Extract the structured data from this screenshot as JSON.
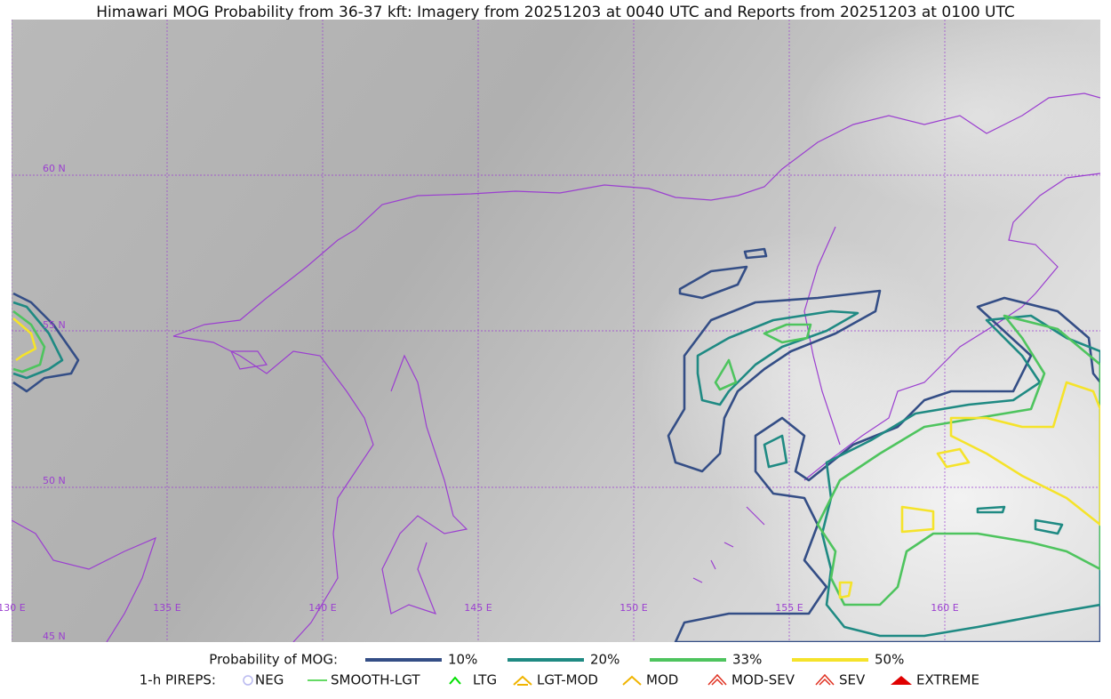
{
  "title": "Himawari MOG Probability from 36-37 kft: Imagery from 20251203 at 0040 UTC and Reports from 20251203 at 0100 UTC",
  "map": {
    "lat_labels": [
      "60 N",
      "55 N",
      "50 N",
      "45 N"
    ],
    "lon_labels": [
      "130 E",
      "135 E",
      "140 E",
      "145 E",
      "150 E",
      "155 E",
      "160 E"
    ]
  },
  "legend": {
    "probability": {
      "label": "Probability of MOG:",
      "items": [
        {
          "label": "10%",
          "color": "#344e86"
        },
        {
          "label": "20%",
          "color": "#1f8a83"
        },
        {
          "label": "33%",
          "color": "#4ec45e"
        },
        {
          "label": "50%",
          "color": "#f5e32a"
        }
      ]
    },
    "pireps": {
      "label": "1-h PIREPS:",
      "items": [
        {
          "label": "NEG",
          "color": "#b9b9f0"
        },
        {
          "label": "SMOOTH-LGT",
          "color": "#32cd32"
        },
        {
          "label": "LTG",
          "color": "#00e000"
        },
        {
          "label": "LGT-MOD",
          "color": "#f0b400"
        },
        {
          "label": "MOD",
          "color": "#f0b400"
        },
        {
          "label": "MOD-SEV",
          "color": "#e03020"
        },
        {
          "label": "SEV",
          "color": "#e03020"
        },
        {
          "label": "EXTREME",
          "color": "#e00000"
        }
      ]
    }
  }
}
